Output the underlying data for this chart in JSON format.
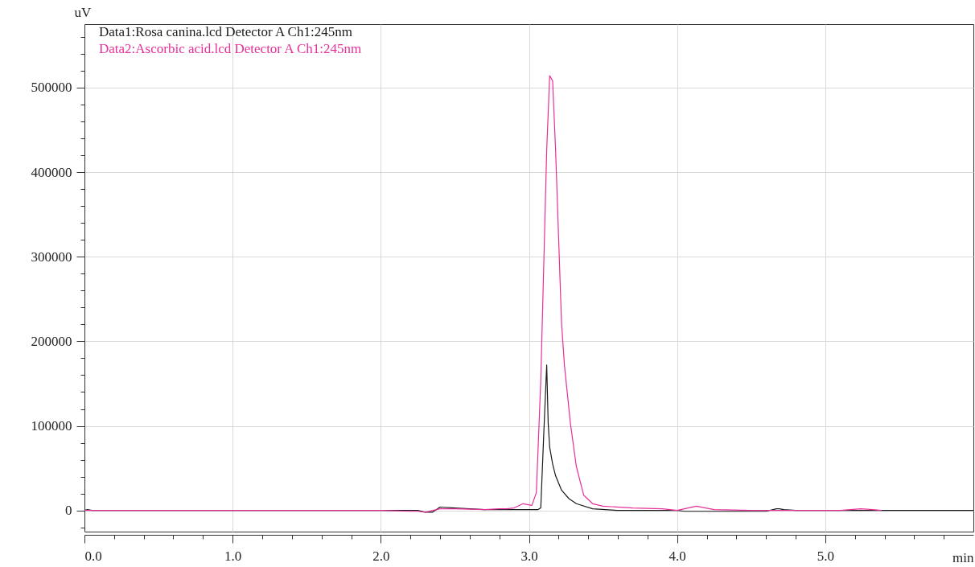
{
  "chart_data": {
    "type": "line",
    "xlabel": "min",
    "ylabel": "uV",
    "xlim": [
      0,
      6
    ],
    "ylim": [
      -25000,
      575000
    ],
    "xticks": [
      {
        "value": 0,
        "label": "0.0"
      },
      {
        "value": 0.2,
        "label": null
      },
      {
        "value": 0.4,
        "label": null
      },
      {
        "value": 0.6,
        "label": null
      },
      {
        "value": 0.8,
        "label": null
      },
      {
        "value": 1,
        "label": "1.0"
      },
      {
        "value": 1.2,
        "label": null
      },
      {
        "value": 1.4,
        "label": null
      },
      {
        "value": 1.6,
        "label": null
      },
      {
        "value": 1.8,
        "label": null
      },
      {
        "value": 2,
        "label": "2.0"
      },
      {
        "value": 2.2,
        "label": null
      },
      {
        "value": 2.4,
        "label": null
      },
      {
        "value": 2.6,
        "label": null
      },
      {
        "value": 2.8,
        "label": null
      },
      {
        "value": 3,
        "label": "3.0"
      },
      {
        "value": 3.2,
        "label": null
      },
      {
        "value": 3.4,
        "label": null
      },
      {
        "value": 3.6,
        "label": null
      },
      {
        "value": 3.8,
        "label": null
      },
      {
        "value": 4,
        "label": "4.0"
      },
      {
        "value": 4.2,
        "label": null
      },
      {
        "value": 4.4,
        "label": null
      },
      {
        "value": 4.6,
        "label": null
      },
      {
        "value": 4.8,
        "label": null
      },
      {
        "value": 5,
        "label": "5.0"
      },
      {
        "value": 5.2,
        "label": null
      },
      {
        "value": 5.4,
        "label": null
      },
      {
        "value": 5.6,
        "label": null
      },
      {
        "value": 5.8,
        "label": null
      }
    ],
    "yticks": [
      {
        "value": -20000,
        "label": null
      },
      0,
      {
        "value": 20000,
        "label": null
      },
      {
        "value": 40000,
        "label": null
      },
      {
        "value": 60000,
        "label": null
      },
      {
        "value": 80000,
        "label": null
      },
      100000,
      {
        "value": 120000,
        "label": null
      },
      {
        "value": 140000,
        "label": null
      },
      {
        "value": 160000,
        "label": null
      },
      {
        "value": 180000,
        "label": null
      },
      200000,
      {
        "value": 220000,
        "label": null
      },
      {
        "value": 240000,
        "label": null
      },
      {
        "value": 260000,
        "label": null
      },
      {
        "value": 280000,
        "label": null
      },
      300000,
      {
        "value": 320000,
        "label": null
      },
      {
        "value": 340000,
        "label": null
      },
      {
        "value": 360000,
        "label": null
      },
      {
        "value": 380000,
        "label": null
      },
      400000,
      {
        "value": 420000,
        "label": null
      },
      {
        "value": 440000,
        "label": null
      },
      {
        "value": 460000,
        "label": null
      },
      {
        "value": 480000,
        "label": null
      },
      500000,
      {
        "value": 520000,
        "label": null
      },
      {
        "value": 540000,
        "label": null
      },
      {
        "value": 560000,
        "label": null
      }
    ],
    "grid": true,
    "legend": "top left",
    "series": [
      {
        "name": "Data1:Rosa canina.lcd Detector A Ch1:245nm",
        "color": "#1a1a1a",
        "x": [
          0,
          0.02,
          0.05,
          0.2,
          1.0,
          2.0,
          2.25,
          2.3,
          2.35,
          2.4,
          2.5,
          2.7,
          3.0,
          3.06,
          3.08,
          3.1,
          3.12,
          3.13,
          3.14,
          3.16,
          3.18,
          3.22,
          3.27,
          3.32,
          3.43,
          3.6,
          4.0,
          4.05,
          4.6,
          4.67,
          4.69,
          4.72,
          4.8,
          5.0,
          6.0
        ],
        "values": [
          0,
          1000,
          0,
          0,
          0,
          0,
          0,
          -2000,
          -2000,
          4000,
          3000,
          1000,
          1000,
          1000,
          3000,
          90000,
          172000,
          103000,
          75000,
          55000,
          41000,
          24000,
          14000,
          8000,
          2000,
          0,
          0,
          -1000,
          -1000,
          2000,
          2000,
          1000,
          0,
          0,
          0
        ]
      },
      {
        "name": "Data2:Ascorbic acid.lcd Detector A Ch1:245nm",
        "color": "#e6309a",
        "x": [
          0,
          0.2,
          1.0,
          2.0,
          2.2,
          2.25,
          2.3,
          2.4,
          2.5,
          2.7,
          2.8,
          2.85,
          2.9,
          2.96,
          3.02,
          3.05,
          3.08,
          3.1,
          3.12,
          3.14,
          3.16,
          3.18,
          3.2,
          3.22,
          3.24,
          3.28,
          3.32,
          3.37,
          3.43,
          3.5,
          3.7,
          3.9,
          4.0,
          4.13,
          4.25,
          4.5,
          4.8,
          5.1,
          5.24,
          5.32,
          5.38
        ],
        "values": [
          0,
          0,
          0,
          0,
          -1000,
          -1000,
          -2000,
          2000,
          2000,
          1000,
          2000,
          2000,
          3000,
          8000,
          6000,
          21000,
          154000,
          290000,
          426000,
          514000,
          508000,
          426000,
          324000,
          222000,
          171000,
          103000,
          52000,
          18000,
          8000,
          5000,
          3000,
          2000,
          0,
          5000,
          1000,
          0,
          0,
          0,
          2000,
          1000,
          0
        ]
      }
    ]
  }
}
